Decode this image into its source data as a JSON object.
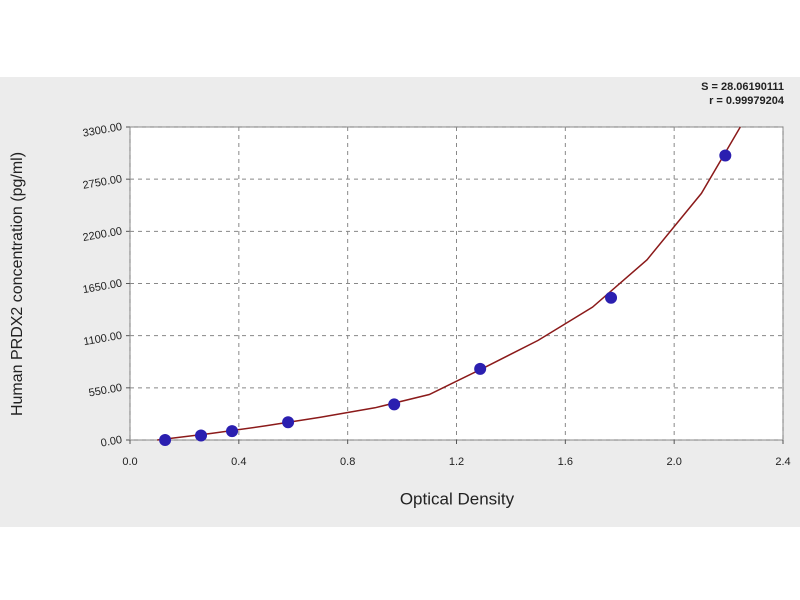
{
  "chart_data": {
    "type": "scatter",
    "xlabel": "Optical Density",
    "ylabel": "Human PRDX2 concentration (pg/ml)",
    "annotations": [
      "S = 28.06190111",
      "r = 0.99979204"
    ],
    "x": [
      0.129,
      0.261,
      0.375,
      0.581,
      0.971,
      1.287,
      1.768,
      2.188
    ],
    "values": [
      0,
      46.875,
      93.75,
      187.5,
      375,
      750,
      1500,
      3000
    ],
    "color": "#2b1fb0",
    "fit": {
      "color": "#8b1a1a",
      "x": [
        0.1,
        0.3,
        0.5,
        0.7,
        0.9,
        1.1,
        1.3,
        1.5,
        1.7,
        1.9,
        2.1,
        2.243
      ],
      "values": [
        0,
        70,
        150,
        240,
        340,
        480,
        760,
        1050,
        1400,
        1900,
        2600,
        3300
      ]
    },
    "xlim": [
      0,
      2.4
    ],
    "xticks": [
      {
        "value": 0,
        "label": "0.0"
      },
      0.4,
      0.8,
      1.2,
      1.6,
      {
        "value": 2,
        "label": "2.0"
      },
      2.4
    ],
    "ylim": [
      0,
      3300
    ],
    "yticks": [
      {
        "value": 0,
        "label": "0.00"
      },
      {
        "value": 550,
        "label": "550.00"
      },
      {
        "value": 1100,
        "label": "1100.00"
      },
      {
        "value": 1650,
        "label": "1650.00"
      },
      {
        "value": 2200,
        "label": "2200.00"
      },
      {
        "value": 2750,
        "label": "2750.00"
      },
      {
        "value": 3300,
        "label": "3300.00"
      }
    ],
    "grid": true
  }
}
